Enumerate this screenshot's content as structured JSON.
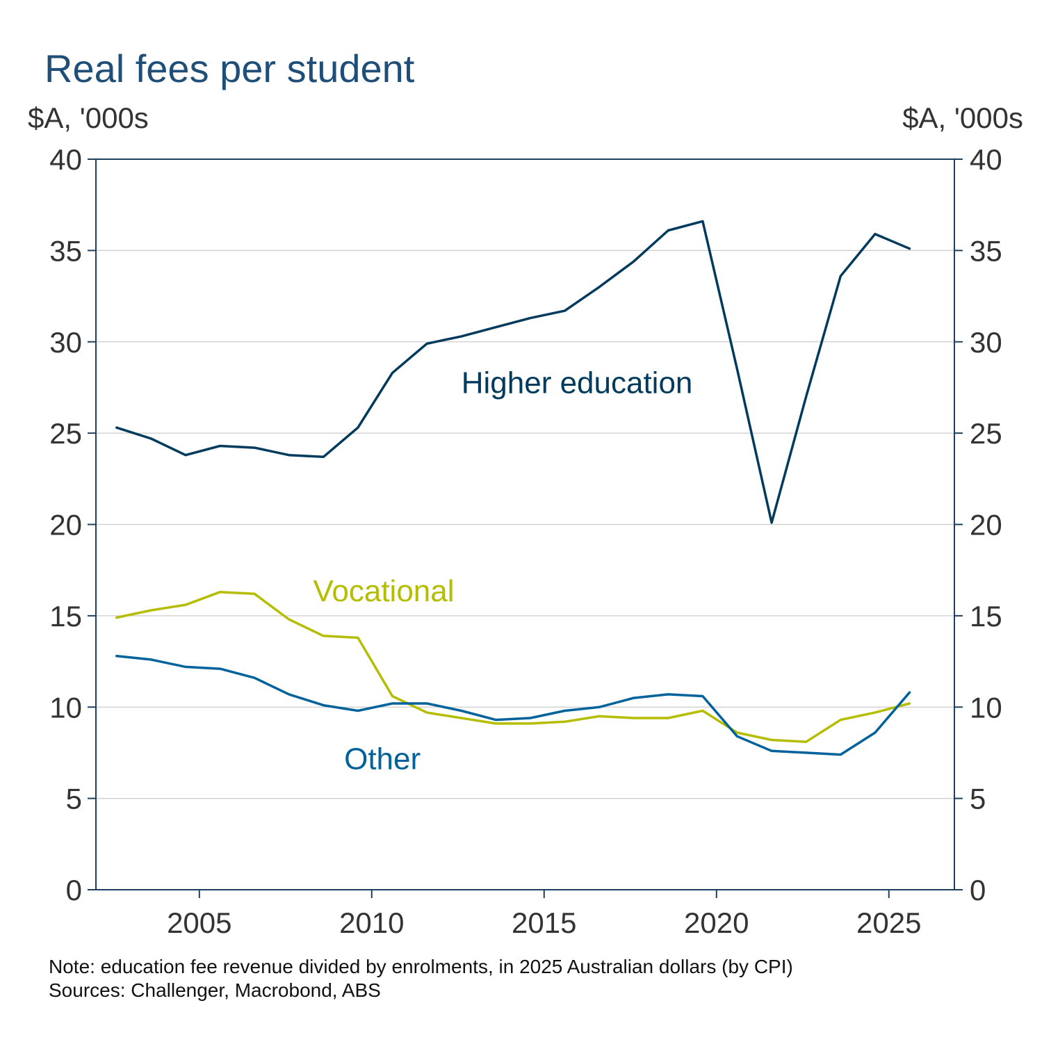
{
  "chart_data": {
    "type": "line",
    "title": "Real fees per student",
    "y_unit_left": "$A, '000s",
    "y_unit_right": "$A, '000s",
    "ylim": [
      0,
      40
    ],
    "yticks": [
      0,
      5,
      10,
      15,
      20,
      25,
      30,
      35,
      40
    ],
    "xlim": [
      2002.0,
      2026.9
    ],
    "xticks": [
      2005,
      2010,
      2015,
      2020,
      2025
    ],
    "grid": true,
    "x": [
      2002.6,
      2003.6,
      2004.6,
      2005.6,
      2006.6,
      2007.6,
      2008.6,
      2009.6,
      2010.6,
      2011.6,
      2012.6,
      2013.6,
      2014.6,
      2015.6,
      2016.6,
      2017.6,
      2018.6,
      2019.6,
      2020.6,
      2021.6,
      2022.6,
      2023.6,
      2024.6,
      2025.6
    ],
    "series": [
      {
        "name": "Higher education",
        "color": "#003a5c",
        "label_x": 2012.6,
        "label_y": 27.2,
        "values": [
          25.3,
          24.7,
          23.8,
          24.3,
          24.2,
          23.8,
          23.7,
          25.3,
          28.3,
          29.9,
          30.3,
          30.8,
          31.3,
          31.7,
          33.0,
          34.4,
          36.1,
          36.6,
          28.5,
          20.1,
          27.0,
          33.6,
          35.9,
          35.1
        ]
      },
      {
        "name": "Vocational",
        "color": "#b5bd00",
        "label_x": 2008.3,
        "label_y": 15.8,
        "values": [
          14.9,
          15.3,
          15.6,
          16.3,
          16.2,
          14.8,
          13.9,
          13.8,
          10.6,
          9.7,
          9.4,
          9.1,
          9.1,
          9.2,
          9.5,
          9.4,
          9.4,
          9.8,
          8.6,
          8.2,
          8.1,
          9.3,
          9.7,
          10.2
        ]
      },
      {
        "name": "Other",
        "color": "#00629b",
        "label_x": 2009.2,
        "label_y": 6.6,
        "values": [
          12.8,
          12.6,
          12.2,
          12.1,
          11.6,
          10.7,
          10.1,
          9.8,
          10.2,
          10.2,
          9.8,
          9.3,
          9.4,
          9.8,
          10.0,
          10.5,
          10.7,
          10.6,
          8.4,
          7.6,
          7.5,
          7.4,
          8.6,
          10.8
        ]
      }
    ],
    "note": "Note: education fee revenue divided by enrolments, in 2025 Australian dollars (by CPI)",
    "sources": "Sources: Challenger, Macrobond, ABS"
  }
}
